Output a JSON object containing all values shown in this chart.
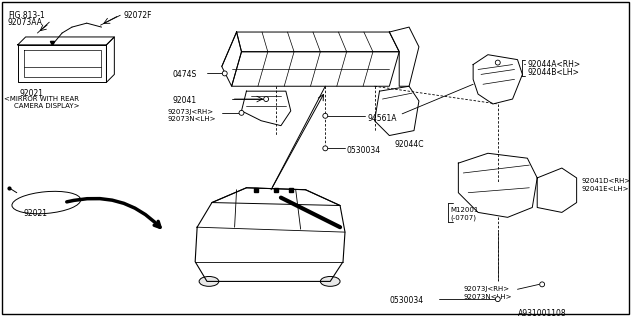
{
  "bg_color": "#ffffff",
  "border_color": "#000000",
  "line_color": "#000000",
  "diagram_id": "A931001108",
  "labels": {
    "fig_ref": "FIG.813-1",
    "part_92072F": "92072F",
    "part_92073AA": "92073AA",
    "part_92021_1": "92021",
    "mirror_text1": "<MIRROR WITH REAR",
    "mirror_text2": "CAMERA DISPLAY>",
    "part_92021_2": "92021",
    "part_0474S": "0474S",
    "part_92041": "92041",
    "part_92073J_top": "92073J<RH>",
    "part_92073N_top": "92073N<LH>",
    "part_94561A": "94561A",
    "part_92044A": "92044A<RH>",
    "part_92044B": "92044B<LH>",
    "part_92044C": "92044C",
    "part_M12001": "M12001",
    "part_0707": "(-0707)",
    "part_0530034_mid": "0530034",
    "part_92073J_bot": "92073J<RH>",
    "part_92073N_bot": "92073N<LH>",
    "part_92041D": "92041D<RH>",
    "part_92041E": "92041E<LH>",
    "part_0530034_bot": "0530034"
  }
}
